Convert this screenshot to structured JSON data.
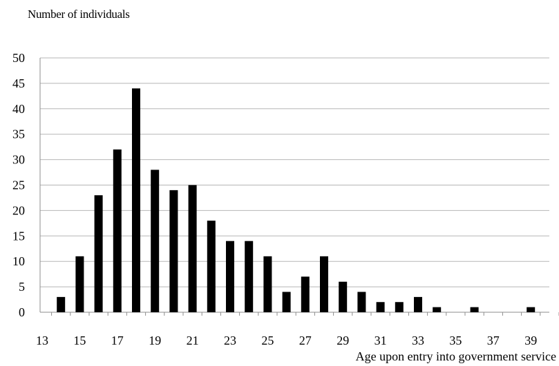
{
  "chart_data": {
    "type": "bar",
    "ylabel": "Number of individuals",
    "xlabel": "Age upon entry into government service",
    "ylim": [
      0,
      50
    ],
    "yticks": [
      0,
      5,
      10,
      15,
      20,
      25,
      30,
      35,
      40,
      45,
      50
    ],
    "xlim": [
      13,
      40
    ],
    "xticks": [
      13,
      15,
      17,
      19,
      21,
      23,
      25,
      27,
      29,
      31,
      33,
      35,
      37,
      39
    ],
    "grid": "horizontal",
    "bar_color": "#000000",
    "categories": [
      14,
      15,
      16,
      17,
      18,
      19,
      20,
      21,
      22,
      23,
      24,
      25,
      26,
      27,
      28,
      29,
      30,
      31,
      32,
      33,
      34,
      36,
      39
    ],
    "values": [
      3,
      11,
      23,
      32,
      44,
      28,
      24,
      25,
      18,
      14,
      14,
      11,
      4,
      7,
      11,
      6,
      4,
      2,
      2,
      3,
      1,
      1,
      1
    ]
  }
}
